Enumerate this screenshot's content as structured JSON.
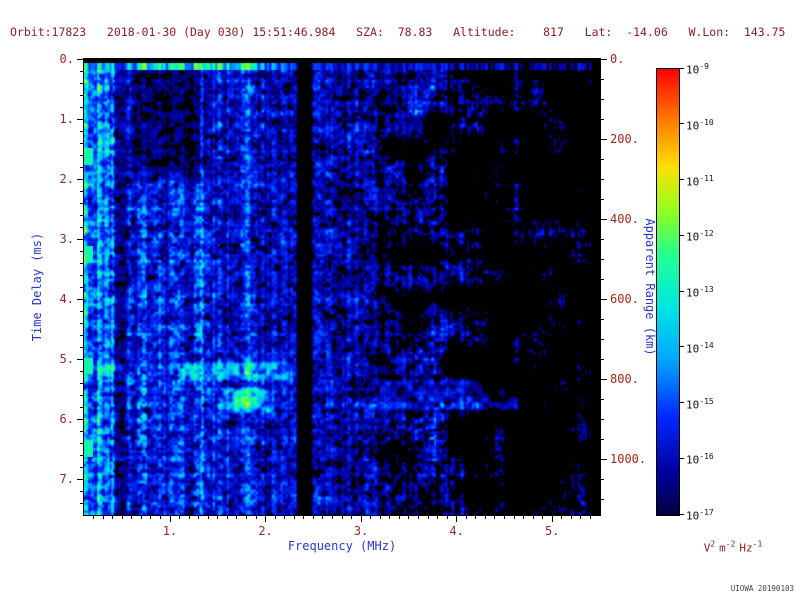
{
  "header": {
    "text": "Orbit:17823   2018-01-30 (Day 030) 15:51:46.984   SZA:  78.83   Altitude:    817   Lat:  -14.06   W.Lon:  143.75",
    "orbit": "17823",
    "date": "2018-01-30",
    "day_of_year": "030",
    "time_ut": "15:51:46.984",
    "sza_deg": "78.83",
    "altitude_km": "817",
    "latitude_deg": "-14.06",
    "west_longitude_deg": "143.75"
  },
  "credit": {
    "text": "UIOWA 20190103"
  },
  "chart_data": {
    "type": "heatmap",
    "description": "Radar sounder ionogram: received spectral density (V^2 m^-2 Hz^-1, log color scale 1e-17 to 1e-9) versus sounding frequency (0.1-5.5 MHz) and echo time delay (0-7.6 ms). Mostly dark-blue noise; bright cyan-green band with vertical striping below ~0.4 MHz; bright surface/zero-delay stripe near the top out to ~2.5 MHz; full-height black interference gap near 2.4 MHz; narrow bright vertical line near 1.33 MHz; green blobs on the left edge near 1.6, 3.3, 5.1 and 6.5 ms; cyan echo patches near 5.0-5.9 ms between 1.0-2.3 MHz and a faint patch 3.1-4.7 MHz; sparse blue speckle fading to black toward 5.5 MHz.",
    "x": {
      "label": "Frequency (MHz)",
      "min": 0.1,
      "max": 5.5,
      "minor_step": 0.1,
      "major_ticks": [
        {
          "v": 1,
          "label": "1."
        },
        {
          "v": 2,
          "label": "2."
        },
        {
          "v": 3,
          "label": "3."
        },
        {
          "v": 4,
          "label": "4."
        },
        {
          "v": 5,
          "label": "5."
        }
      ]
    },
    "y_left": {
      "label": "Time Delay (ms)",
      "min": 0,
      "max": 7.6,
      "minor_step": 0.2,
      "major_ticks": [
        {
          "v": 0,
          "label": "0."
        },
        {
          "v": 1,
          "label": "1."
        },
        {
          "v": 2,
          "label": "2."
        },
        {
          "v": 3,
          "label": "3."
        },
        {
          "v": 4,
          "label": "4."
        },
        {
          "v": 5,
          "label": "5."
        },
        {
          "v": 6,
          "label": "6."
        },
        {
          "v": 7,
          "label": "7."
        }
      ]
    },
    "y_right": {
      "label": "Apparent Range (km)",
      "km_per_ms": 150,
      "minor_step_km": 50,
      "major_ticks": [
        {
          "km": 0,
          "label": "0."
        },
        {
          "km": 200,
          "label": "200."
        },
        {
          "km": 400,
          "label": "400."
        },
        {
          "km": 600,
          "label": "600."
        },
        {
          "km": 800,
          "label": "800."
        },
        {
          "km": 1000,
          "label": "1000."
        }
      ]
    },
    "colorbar": {
      "scale": "log10",
      "mantissa": "10",
      "exponents": [
        "-9",
        "-10",
        "-11",
        "-12",
        "-13",
        "-14",
        "-15",
        "-16",
        "-17"
      ],
      "unit": {
        "v_base": "V",
        "v_exp": "2",
        "m_base": "m",
        "m_exp": "-2",
        "hz_base": "Hz",
        "hz_exp": "-1"
      },
      "colormap": [
        {
          "t": 0.0,
          "c": "#000040"
        },
        {
          "t": 0.1,
          "c": "#0000a0"
        },
        {
          "t": 0.22,
          "c": "#0028ff"
        },
        {
          "t": 0.35,
          "c": "#00a8ff"
        },
        {
          "t": 0.47,
          "c": "#00e8e0"
        },
        {
          "t": 0.58,
          "c": "#20ff90"
        },
        {
          "t": 0.68,
          "c": "#90ff20"
        },
        {
          "t": 0.78,
          "c": "#ffe000"
        },
        {
          "t": 0.88,
          "c": "#ff8000"
        },
        {
          "t": 1.0,
          "c": "#ff0000"
        }
      ]
    },
    "render": {
      "seed": 1823,
      "surface_stripe_ms": [
        0.055,
        0.18
      ],
      "dark_band_mhz": [
        2.33,
        2.49
      ],
      "dark_gap_mhz": [
        0.4,
        0.58
      ],
      "bright_line_mhz": 1.33,
      "faint_line_mhz": 1.82,
      "left_bright_max_mhz": 0.42,
      "dark_wedge": {
        "f": [
          0.52,
          1.5
        ],
        "d_max": 2.3
      },
      "edge_blob_delays_ms": [
        1.62,
        3.26,
        5.12,
        6.5
      ],
      "echo_patches": [
        {
          "f": [
            1.05,
            2.3
          ],
          "d": [
            5.0,
            5.4
          ],
          "gain": 0.5
        },
        {
          "f": [
            1.5,
            2.12
          ],
          "d": [
            5.45,
            5.95
          ],
          "gain": 0.55
        },
        {
          "f": [
            3.1,
            4.7
          ],
          "d": [
            5.3,
            5.9
          ],
          "gain": 0.26
        },
        {
          "f": [
            0.1,
            0.55
          ],
          "d": [
            5.05,
            5.25
          ],
          "gain": 0.4
        }
      ]
    }
  }
}
